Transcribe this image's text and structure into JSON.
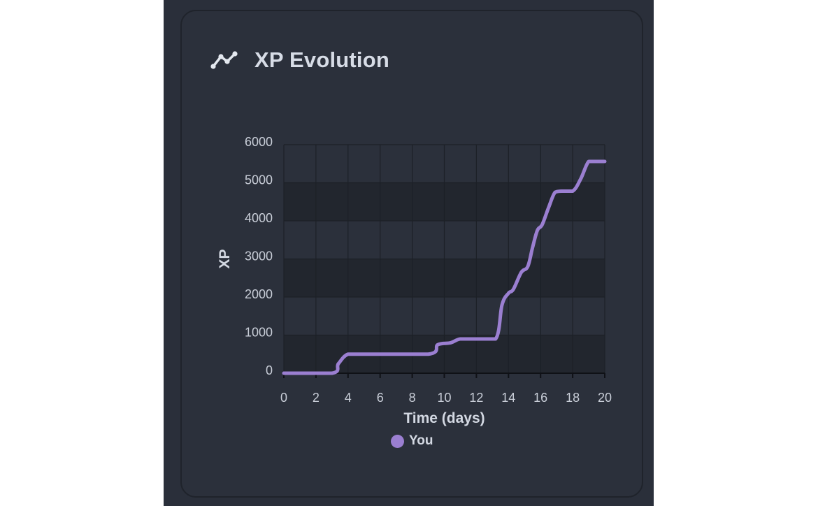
{
  "card": {
    "title": "XP Evolution",
    "icon": "chart-line-icon"
  },
  "colors": {
    "background": "#2a2f3a",
    "card": "#2b303b",
    "series": "#9b7fd1",
    "grid_band_dark": "#22262e",
    "grid_band_light": "#2b303b",
    "text": "#d3d8e2"
  },
  "chart_data": {
    "type": "line",
    "title": "",
    "xlabel": "Time (days)",
    "ylabel": "XP",
    "xlim": [
      0,
      20
    ],
    "ylim": [
      0,
      6000
    ],
    "xticks": [
      0,
      2,
      4,
      6,
      8,
      10,
      12,
      14,
      16,
      18,
      20
    ],
    "yticks": [
      0,
      1000,
      2000,
      3000,
      4000,
      5000,
      6000
    ],
    "grid": true,
    "legend_position": "bottom-center",
    "series": [
      {
        "name": "You",
        "x": [
          0,
          3,
          3.4,
          4,
          5,
          9,
          9.6,
          10.4,
          11,
          12,
          13.2,
          13.6,
          14,
          14.3,
          14.8,
          15.2,
          15.5,
          15.8,
          16.1,
          16.5,
          16.9,
          17.3,
          18,
          18.5,
          19,
          19.5,
          20
        ],
        "y": [
          0,
          0,
          250,
          500,
          500,
          500,
          750,
          800,
          900,
          900,
          900,
          1800,
          2100,
          2200,
          2650,
          2800,
          3300,
          3750,
          3900,
          4350,
          4750,
          4780,
          4780,
          5100,
          5560,
          5560,
          5560
        ]
      }
    ]
  }
}
